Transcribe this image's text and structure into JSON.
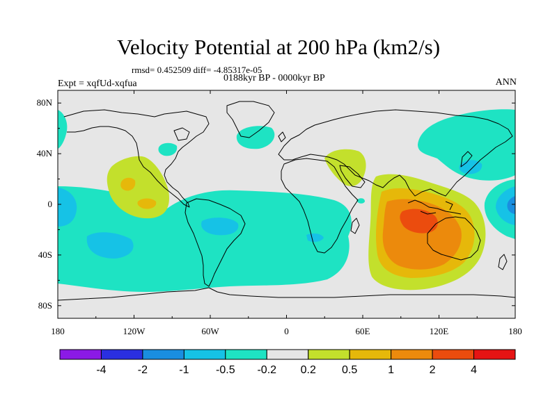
{
  "title": "Velocity Potential at 200 hPa (km2/s)",
  "stats": "rmsd= 0.452509 diff= -4.85317e-05",
  "period": "0188kyr BP - 0000kyr BP",
  "experiment": "Expt = xqfUd-xqfua",
  "season": "ANN",
  "map": {
    "projection": "cylindrical equidistant",
    "lon_range": [
      -180,
      180
    ],
    "lat_range": [
      -90,
      90
    ],
    "x_ticks": [
      {
        "lon": -180,
        "label": "180"
      },
      {
        "lon": -120,
        "label": "120W"
      },
      {
        "lon": -60,
        "label": "60W"
      },
      {
        "lon": 0,
        "label": "0"
      },
      {
        "lon": 60,
        "label": "60E"
      },
      {
        "lon": 120,
        "label": "120E"
      },
      {
        "lon": 180,
        "label": "180"
      }
    ],
    "y_ticks": [
      {
        "lat": 80,
        "label": "80N"
      },
      {
        "lat": 40,
        "label": "40N"
      },
      {
        "lat": 0,
        "label": "0"
      },
      {
        "lat": -40,
        "label": "40S"
      },
      {
        "lat": -80,
        "label": "80S"
      }
    ]
  },
  "colorbar": {
    "colors": [
      "#8b1ae6",
      "#2a2fe0",
      "#1a8ee0",
      "#16c2e6",
      "#1ee3c3",
      "#e6e6e6",
      "#c3e02c",
      "#e6b80a",
      "#ec8a0c",
      "#eb4c0e",
      "#e61414"
    ],
    "labels": [
      "-4",
      "-2",
      "-1",
      "-0.5",
      "-0.2",
      "0.2",
      "0.5",
      "1",
      "2",
      "4"
    ]
  }
}
